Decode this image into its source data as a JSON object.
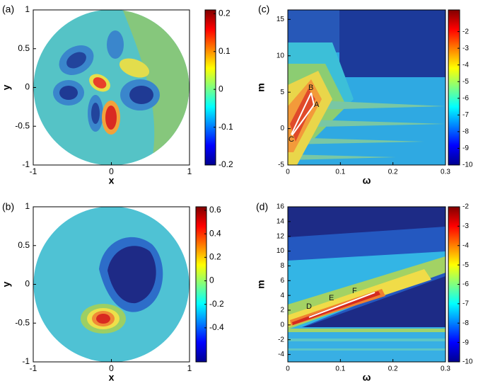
{
  "chart_data": [
    {
      "type": "contour",
      "panel_label": "(a)",
      "xlabel": "x",
      "ylabel": "y",
      "xlim": [
        -1,
        1
      ],
      "ylim": [
        -1,
        1
      ],
      "xticks": [
        -1,
        0,
        1
      ],
      "yticks": [
        -1,
        -0.5,
        0,
        0.5,
        1
      ],
      "clim": [
        -0.2,
        0.21
      ],
      "cticks": [
        -0.2,
        -0.1,
        0,
        0.1,
        0.2
      ],
      "colormap": "jet",
      "annotations": []
    },
    {
      "type": "contour",
      "panel_label": "(b)",
      "xlabel": "x",
      "ylabel": "y",
      "xlim": [
        -1,
        1
      ],
      "ylim": [
        -1,
        1
      ],
      "xticks": [
        -1,
        0,
        1
      ],
      "yticks": [
        -1,
        -0.5,
        0,
        0.5,
        1
      ],
      "clim": [
        -0.69,
        0.63
      ],
      "cticks": [
        -0.4,
        -0.2,
        0,
        0.2,
        0.4,
        0.6
      ],
      "colormap": "jet",
      "annotations": []
    },
    {
      "type": "contour",
      "panel_label": "(c)",
      "xlabel": "ω",
      "ylabel": "m",
      "xlim": [
        0,
        0.3
      ],
      "ylim": [
        -5,
        16.3
      ],
      "xticks": [
        0,
        0.1,
        0.2,
        0.3
      ],
      "yticks": [
        -5,
        0,
        5,
        10,
        15
      ],
      "clim": [
        -10,
        -0.7
      ],
      "cticks": [
        -10,
        -9,
        -8,
        -7,
        -6,
        -5,
        -4,
        -3,
        -2
      ],
      "colormap": "jet",
      "annotations": [
        "A",
        "B",
        "C"
      ]
    },
    {
      "type": "contour",
      "panel_label": "(d)",
      "xlabel": "ω",
      "ylabel": "m",
      "xlim": [
        0,
        0.3
      ],
      "ylim": [
        -5,
        16
      ],
      "xticks": [
        0,
        0.1,
        0.2,
        0.3
      ],
      "yticks": [
        -4,
        -2,
        0,
        2,
        4,
        6,
        8,
        10,
        12,
        14,
        16
      ],
      "clim": [
        -10,
        -2
      ],
      "cticks": [
        -10,
        -9,
        -8,
        -7,
        -6,
        -5,
        -4,
        -3,
        -2
      ],
      "colormap": "jet",
      "annotations": [
        "D",
        "E",
        "F"
      ]
    }
  ]
}
